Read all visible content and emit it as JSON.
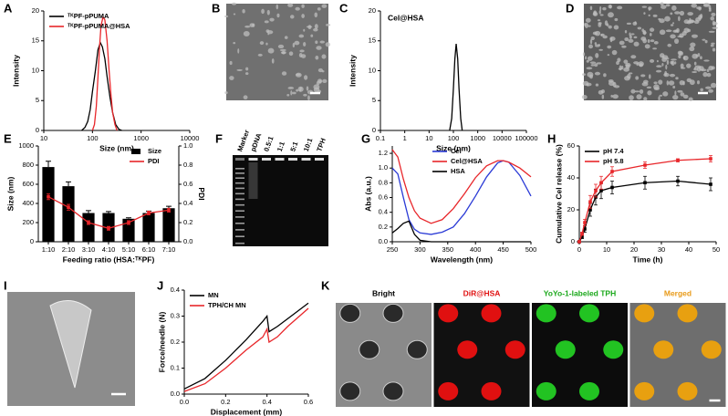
{
  "chart_data": [
    {
      "panel": "A",
      "type": "line",
      "xscale": "log",
      "xlim": [
        10,
        10000
      ],
      "xticks": [
        10,
        100,
        1000,
        10000
      ],
      "ylim": [
        0,
        20
      ],
      "yticks": [
        0,
        5,
        10,
        15,
        20
      ],
      "xlabel": "Size (nm)",
      "ylabel": "Intensity",
      "legend": "upper left",
      "series": [
        {
          "name": "ᵀᴷPF-pPUMA",
          "color": "#000000",
          "x": [
            60,
            70,
            80,
            90,
            100,
            115,
            130,
            145,
            160,
            180,
            200,
            230,
            260,
            300,
            350,
            400
          ],
          "values": [
            0,
            0.5,
            1.5,
            3.5,
            6.5,
            10,
            13.5,
            14.7,
            14,
            12,
            9,
            5.5,
            3,
            1,
            0.2,
            0
          ]
        },
        {
          "name": "ᵀᴷPF-pPUMA@HSA",
          "color": "#e8262a",
          "x": [
            100,
            110,
            120,
            130,
            140,
            150,
            165,
            180,
            200,
            220,
            240,
            260,
            290,
            320
          ],
          "values": [
            0,
            1,
            4,
            9,
            14,
            17.5,
            19,
            18.5,
            15,
            10,
            6,
            3,
            1,
            0
          ]
        }
      ]
    },
    {
      "panel": "C",
      "type": "line",
      "title": "Cel@HSA",
      "xscale": "log",
      "xlim": [
        0.1,
        100000
      ],
      "xticks": [
        0.1,
        1,
        10,
        100,
        1000,
        10000,
        100000
      ],
      "ylim": [
        0,
        20
      ],
      "yticks": [
        0,
        5,
        10,
        15,
        20
      ],
      "xlabel": "Size (nm)",
      "ylabel": "Intensity",
      "series": [
        {
          "color": "#000000",
          "x": [
            70,
            85,
            100,
            115,
            130,
            150,
            170,
            200,
            230
          ],
          "values": [
            0,
            2,
            7,
            12,
            14.5,
            12,
            7,
            2,
            0
          ]
        }
      ]
    },
    {
      "panel": "E",
      "type": "bar",
      "categories": [
        "1:10",
        "2:10",
        "3:10",
        "4:10",
        "5:10",
        "6:10",
        "7:10"
      ],
      "xlabel": "Feeding ratio (HSA:ᵀᴷPF)",
      "ylabel": "Size (nm)",
      "y2label": "PDI",
      "ylim": [
        0,
        1000
      ],
      "yticks": [
        0,
        200,
        400,
        600,
        800,
        1000
      ],
      "y2lim": [
        0,
        1
      ],
      "y2ticks": [
        {
          "value": 0,
          "label": "0.0"
        },
        0.2,
        0.4,
        0.6,
        0.8,
        {
          "value": 1,
          "label": "1.0"
        }
      ],
      "legend": "upper right",
      "series": [
        {
          "name": "Size",
          "type": "bar",
          "color": "#000000",
          "values": [
            780,
            580,
            300,
            300,
            240,
            300,
            350
          ],
          "errors": [
            60,
            45,
            25,
            15,
            10,
            20,
            20
          ]
        },
        {
          "name": "PDI",
          "type": "line",
          "axis": "y2",
          "color": "#e8262a",
          "values": [
            0.47,
            0.36,
            0.2,
            0.14,
            0.2,
            0.3,
            0.33
          ],
          "errors": [
            0.03,
            0.03,
            0.02,
            0.02,
            0.02,
            0.02,
            0.02
          ]
        }
      ]
    },
    {
      "panel": "G",
      "type": "line",
      "xlim": [
        250,
        500
      ],
      "xticks": [
        250,
        300,
        350,
        400,
        450,
        500
      ],
      "ylim": [
        0,
        1.3
      ],
      "yticks": [
        {
          "value": 0,
          "label": "0.0"
        },
        0.2,
        0.4,
        0.6,
        0.8,
        {
          "value": 1,
          "label": "1.0"
        },
        1.2
      ],
      "xlabel": "Wavelength (nm)",
      "ylabel": "Abs (a.u.)",
      "legend": "upper center",
      "series": [
        {
          "name": "Cel",
          "color": "#2b3bd6",
          "x": [
            250,
            260,
            270,
            280,
            290,
            300,
            320,
            340,
            360,
            380,
            400,
            420,
            440,
            450,
            460,
            480,
            500
          ],
          "values": [
            1.0,
            0.92,
            0.6,
            0.3,
            0.17,
            0.12,
            0.1,
            0.13,
            0.2,
            0.38,
            0.62,
            0.88,
            1.07,
            1.1,
            1.08,
            0.9,
            0.62
          ]
        },
        {
          "name": "Cel@HSA",
          "color": "#e8262a",
          "x": [
            250,
            260,
            270,
            280,
            290,
            300,
            320,
            340,
            360,
            380,
            400,
            420,
            440,
            450,
            460,
            480,
            500
          ],
          "values": [
            1.25,
            1.15,
            0.85,
            0.6,
            0.42,
            0.32,
            0.25,
            0.3,
            0.45,
            0.65,
            0.87,
            1.03,
            1.1,
            1.1,
            1.08,
            1.0,
            0.88
          ]
        },
        {
          "name": "HSA",
          "color": "#000000",
          "x": [
            250,
            260,
            270,
            280,
            290,
            300,
            320,
            500
          ],
          "values": [
            0.12,
            0.18,
            0.25,
            0.28,
            0.1,
            0.02,
            0,
            0
          ]
        }
      ]
    },
    {
      "panel": "H",
      "type": "line",
      "xlim": [
        0,
        50
      ],
      "xticks": [
        0,
        10,
        20,
        30,
        40,
        50
      ],
      "ylim": [
        0,
        60
      ],
      "yticks": [
        0,
        20,
        40,
        60
      ],
      "xlabel": "Time (h)",
      "ylabel": "Cumulative Cel release (%)",
      "legend": "upper left",
      "series": [
        {
          "name": "pH 7.4",
          "color": "#000000",
          "x": [
            0,
            1,
            2,
            4,
            6,
            8,
            12,
            24,
            36,
            48
          ],
          "values": [
            0,
            3,
            8,
            20,
            28,
            32,
            34,
            37,
            38,
            36
          ],
          "errors": [
            0,
            1,
            2,
            4,
            5,
            5,
            4,
            4,
            3,
            4
          ]
        },
        {
          "name": "pH 5.8",
          "color": "#e8262a",
          "x": [
            0,
            1,
            2,
            4,
            6,
            8,
            12,
            24,
            36,
            48
          ],
          "values": [
            0,
            5,
            12,
            25,
            32,
            37,
            44,
            48,
            51,
            52
          ],
          "errors": [
            0,
            1,
            2,
            4,
            4,
            4,
            3,
            2,
            1,
            2
          ]
        }
      ]
    },
    {
      "panel": "J",
      "type": "line",
      "xlim": [
        0,
        0.6
      ],
      "xticks": [
        {
          "value": 0,
          "label": "0.0"
        },
        0.2,
        0.4,
        0.6
      ],
      "ylim": [
        0,
        0.4
      ],
      "yticks": [
        {
          "value": 0,
          "label": "0.0"
        },
        0.1,
        0.2,
        0.3,
        0.4
      ],
      "xlabel": "Displacement (mm)",
      "ylabel": "Force/needle (N)",
      "legend": "upper left",
      "series": [
        {
          "name": "MN",
          "color": "#000000",
          "x": [
            0,
            0.1,
            0.2,
            0.3,
            0.38,
            0.4,
            0.41,
            0.45,
            0.5,
            0.6
          ],
          "values": [
            0.02,
            0.06,
            0.13,
            0.21,
            0.28,
            0.3,
            0.24,
            0.26,
            0.29,
            0.35
          ]
        },
        {
          "name": "TPH/CH MN",
          "color": "#e8262a",
          "x": [
            0,
            0.1,
            0.2,
            0.3,
            0.38,
            0.4,
            0.41,
            0.45,
            0.5,
            0.6
          ],
          "values": [
            0.01,
            0.04,
            0.1,
            0.17,
            0.22,
            0.25,
            0.2,
            0.22,
            0.26,
            0.33
          ]
        }
      ]
    }
  ],
  "image_panels": [
    {
      "panel": "B"
    },
    {
      "panel": "D"
    },
    {
      "panel": "F",
      "lanes": [
        "Marker",
        "pDNA",
        "0.5:1",
        "1:1",
        "5:1",
        "10:1",
        "TPH"
      ]
    },
    {
      "panel": "I"
    },
    {
      "panel": "K",
      "channels": [
        "Bright",
        "DiR@HSA",
        "YoYo-1-labeled TPH",
        "Merged"
      ]
    }
  ]
}
